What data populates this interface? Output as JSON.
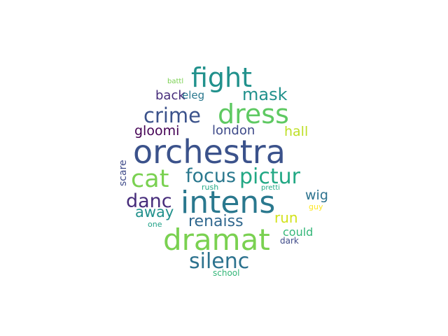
{
  "words": [
    {
      "text": "orchestra",
      "color": "#3b528b"
    },
    {
      "text": "intens",
      "color": "#2a788e"
    },
    {
      "text": "dramat",
      "color": "#7ad151"
    },
    {
      "text": "dress",
      "color": "#5ec962"
    },
    {
      "text": "fight",
      "color": "#21918c"
    },
    {
      "text": "crime",
      "color": "#3b528b"
    },
    {
      "text": "cat",
      "color": "#7ad151"
    },
    {
      "text": "pictur",
      "color": "#22a884"
    },
    {
      "text": "focus",
      "color": "#2a788e"
    },
    {
      "text": "silenc",
      "color": "#2c728e"
    },
    {
      "text": "danc",
      "color": "#472d7b"
    },
    {
      "text": "mask",
      "color": "#21918c"
    },
    {
      "text": "gloomi",
      "color": "#440154"
    },
    {
      "text": "hall",
      "color": "#bddf26"
    },
    {
      "text": "london",
      "color": "#3e4a89"
    },
    {
      "text": "back",
      "color": "#472d7b"
    },
    {
      "text": "eleg",
      "color": "#2a788e"
    },
    {
      "text": "away",
      "color": "#21918c"
    },
    {
      "text": "renaiss",
      "color": "#31688e"
    },
    {
      "text": "run",
      "color": "#d2e21b"
    },
    {
      "text": "wig",
      "color": "#2c728e"
    },
    {
      "text": "could",
      "color": "#35b779"
    },
    {
      "text": "dark",
      "color": "#3e4a89"
    },
    {
      "text": "scare",
      "color": "#3e4a89"
    },
    {
      "text": "rush",
      "color": "#22a884"
    },
    {
      "text": "pretti",
      "color": "#22a884"
    },
    {
      "text": "guy",
      "color": "#fde725"
    },
    {
      "text": "one",
      "color": "#1fa187"
    },
    {
      "text": "school",
      "color": "#35b779"
    },
    {
      "text": "battl",
      "color": "#7ad151"
    }
  ]
}
